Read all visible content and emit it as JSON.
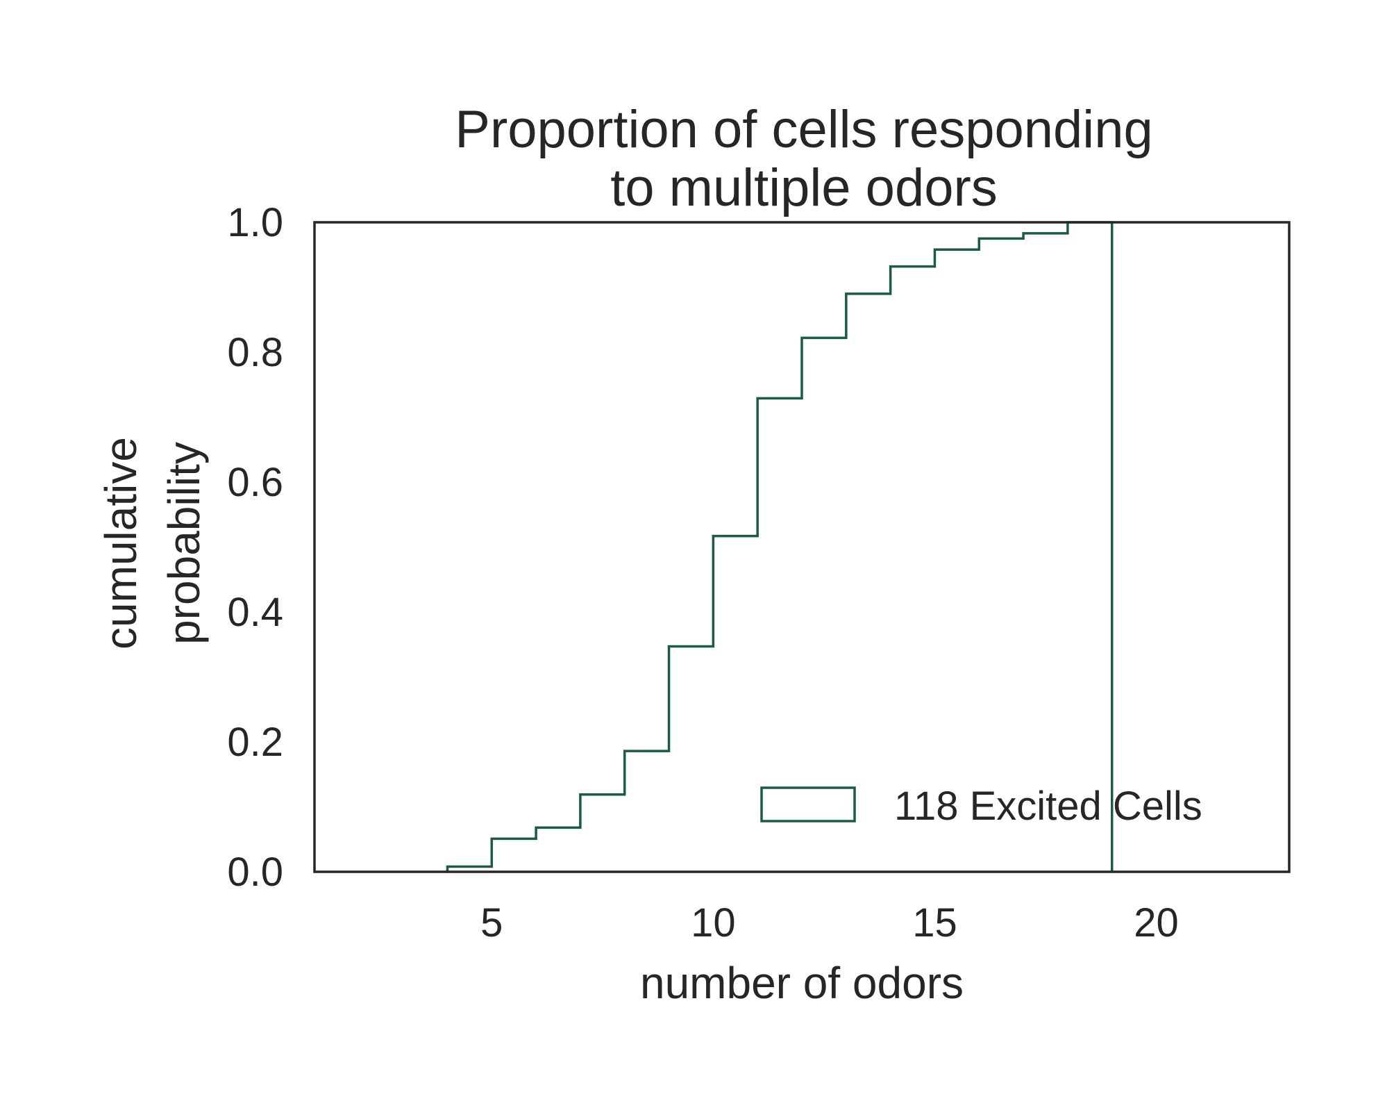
{
  "chart_data": {
    "type": "line",
    "subtype": "cumulative-step-histogram",
    "title_lines": [
      "Proportion of cells responding",
      "to multiple odors"
    ],
    "xlabel": "number of odors",
    "ylabel_lines": [
      "cumulative",
      "probability"
    ],
    "xlim": [
      1,
      23
    ],
    "ylim": [
      0,
      1
    ],
    "x_ticks": [
      5,
      10,
      15,
      20
    ],
    "x_tick_labels": [
      "5",
      "10",
      "15",
      "20"
    ],
    "y_ticks": [
      0,
      0.2,
      0.4,
      0.6,
      0.8,
      1.0
    ],
    "y_tick_labels": [
      "0.0",
      "0.2",
      "0.4",
      "0.6",
      "0.8",
      "1.0"
    ],
    "grid": false,
    "legend": {
      "placement": "lower-right",
      "entries": [
        "118 Excited Cells"
      ]
    },
    "series": [
      {
        "name": "118 Excited Cells",
        "color": "#1b5a4a",
        "steps": [
          {
            "x": 4,
            "y": 0.008
          },
          {
            "x": 5,
            "y": 0.051
          },
          {
            "x": 6,
            "y": 0.068
          },
          {
            "x": 7,
            "y": 0.119
          },
          {
            "x": 8,
            "y": 0.186
          },
          {
            "x": 9,
            "y": 0.347
          },
          {
            "x": 10,
            "y": 0.517
          },
          {
            "x": 11,
            "y": 0.729
          },
          {
            "x": 12,
            "y": 0.822
          },
          {
            "x": 13,
            "y": 0.89
          },
          {
            "x": 14,
            "y": 0.932
          },
          {
            "x": 15,
            "y": 0.958
          },
          {
            "x": 16,
            "y": 0.975
          },
          {
            "x": 17,
            "y": 0.983
          },
          {
            "x": 18,
            "y": 1.0
          }
        ],
        "x_end": 19
      }
    ]
  }
}
